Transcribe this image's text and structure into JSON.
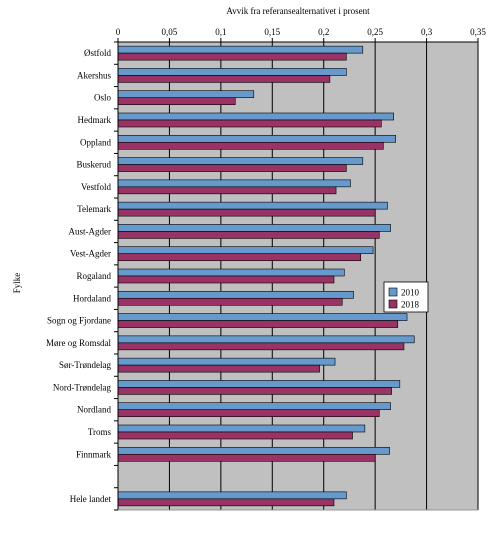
{
  "chart_data": {
    "type": "bar",
    "orientation": "horizontal",
    "title": "Avvik fra referansealternativet i prosent",
    "ylabel": "Fylke",
    "xlim": [
      0,
      0.35
    ],
    "x_ticks": [
      "0",
      "0,05",
      "0,1",
      "0,15",
      "0,2",
      "0,25",
      "0,3",
      "0,35"
    ],
    "x_axis_position": "top",
    "grid": true,
    "plot_background": "#c0c0c0",
    "legend_position": "right",
    "categories": [
      "Østfold",
      "Akershus",
      "Oslo",
      "Hedmark",
      "Oppland",
      "Buskerud",
      "Vestfold",
      "Telemark",
      "Aust-Agder",
      "Vest-Agder",
      "Rogaland",
      "Hordaland",
      "Sogn og Fjordane",
      "Møre og Romsdal",
      "Sør-Trøndelag",
      "Nord-Trøndelag",
      "Nordland",
      "Troms",
      "Finnmark",
      "",
      "Hele landet"
    ],
    "series": [
      {
        "name": "2010",
        "color": "#6699cc",
        "values": [
          0.238,
          0.222,
          0.132,
          0.268,
          0.27,
          0.238,
          0.226,
          0.262,
          0.265,
          0.248,
          0.22,
          0.229,
          0.281,
          0.288,
          0.211,
          0.274,
          0.265,
          0.24,
          0.264,
          null,
          0.222
        ]
      },
      {
        "name": "2018",
        "color": "#993366",
        "values": [
          0.222,
          0.206,
          0.114,
          0.256,
          0.258,
          0.222,
          0.212,
          0.25,
          0.254,
          0.236,
          0.21,
          0.218,
          0.272,
          0.278,
          0.196,
          0.266,
          0.254,
          0.228,
          0.25,
          null,
          0.21
        ]
      }
    ]
  }
}
